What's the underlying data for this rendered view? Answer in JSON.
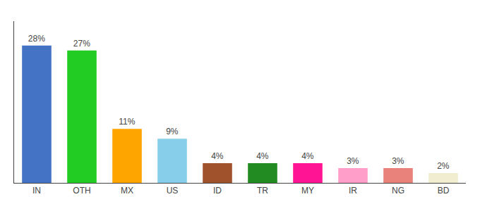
{
  "chart_data": {
    "type": "bar",
    "categories": [
      "IN",
      "OTH",
      "MX",
      "US",
      "ID",
      "TR",
      "MY",
      "IR",
      "NG",
      "BD"
    ],
    "values": [
      28,
      27,
      11,
      9,
      4,
      4,
      4,
      3,
      3,
      2
    ],
    "value_labels": [
      "28%",
      "27%",
      "11%",
      "9%",
      "4%",
      "4%",
      "4%",
      "3%",
      "3%",
      "2%"
    ],
    "colors": [
      "#4472C4",
      "#22CC22",
      "#FFA500",
      "#87CEEB",
      "#A0522D",
      "#228B22",
      "#FF1493",
      "#FF9EC8",
      "#E8827A",
      "#F0EDD0"
    ],
    "ylim": [
      0,
      33
    ],
    "data_labels": true,
    "tick_labels": "x",
    "grid": false
  }
}
